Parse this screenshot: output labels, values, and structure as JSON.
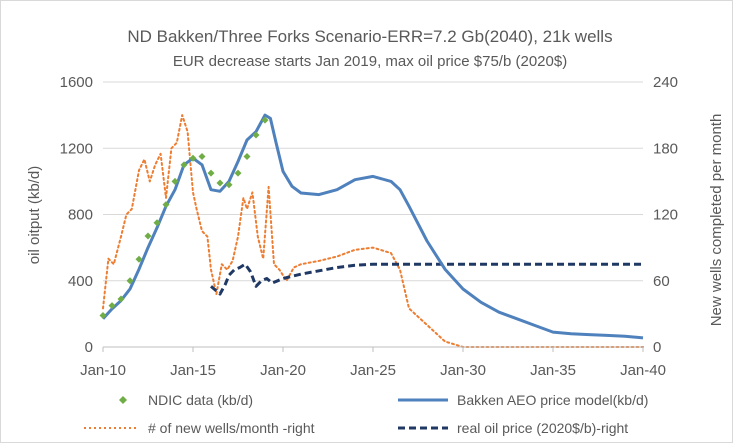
{
  "chart_data": {
    "type": "line",
    "title": "ND Bakken/Three Forks Scenario-ERR=7.2 Gb(2040), 21k wells",
    "subtitle": "EUR decrease starts Jan 2019, max oil price $75/b (2020$)",
    "xlabel": "",
    "ylabel": "oil oitput (kb/d)",
    "y2label": "New wells completed per month",
    "xlim": [
      2010,
      2040
    ],
    "ylim": [
      0,
      1600
    ],
    "y2lim": [
      0,
      240
    ],
    "xticks": [
      2010,
      2015,
      2020,
      2025,
      2030,
      2035,
      2040
    ],
    "xtick_labels": [
      "Jan-10",
      "Jan-15",
      "Jan-20",
      "Jan-25",
      "Jan-30",
      "Jan-35",
      "Jan-40"
    ],
    "yticks": [
      0,
      400,
      800,
      1200,
      1600
    ],
    "ytick_labels": [
      "0",
      "400",
      "800",
      "1200",
      "1600"
    ],
    "y2ticks": [
      0,
      60,
      120,
      180,
      240
    ],
    "y2tick_labels": [
      "0",
      "60",
      "120",
      "180",
      "240"
    ],
    "grid": "horizontal",
    "legend_position": "bottom",
    "series": [
      {
        "name": "NDIC  data (kb/d)",
        "axis": "left",
        "style": "markers",
        "color": "#70ad47",
        "x": [
          2010.0,
          2010.5,
          2011.0,
          2011.5,
          2012.0,
          2012.5,
          2013.0,
          2013.5,
          2014.0,
          2014.5,
          2015.0,
          2015.5,
          2016.0,
          2016.5,
          2017.0,
          2017.5,
          2018.0,
          2018.5,
          2019.0
        ],
        "y": [
          190,
          250,
          290,
          400,
          530,
          670,
          750,
          860,
          1000,
          1100,
          1140,
          1150,
          1050,
          990,
          980,
          1050,
          1150,
          1280,
          1370
        ]
      },
      {
        "name": "Bakken AEO price model(kb/d)",
        "axis": "left",
        "style": "solid",
        "color": "#4f81bd",
        "x": [
          2010.0,
          2010.5,
          2011.0,
          2011.5,
          2012.0,
          2012.5,
          2013.0,
          2013.5,
          2014.0,
          2014.5,
          2015.0,
          2015.5,
          2016.0,
          2016.5,
          2017.0,
          2017.5,
          2018.0,
          2018.5,
          2019.0,
          2019.3,
          2019.6,
          2020.0,
          2020.5,
          2021.0,
          2022.0,
          2023.0,
          2024.0,
          2025.0,
          2026.0,
          2026.5,
          2027.0,
          2028.0,
          2029.0,
          2030.0,
          2031.0,
          2032.0,
          2033.0,
          2034.0,
          2035.0,
          2036.0,
          2037.0,
          2038.0,
          2039.0,
          2040.0
        ],
        "y": [
          170,
          230,
          280,
          350,
          470,
          600,
          720,
          850,
          950,
          1100,
          1140,
          1100,
          950,
          940,
          1000,
          1120,
          1250,
          1300,
          1400,
          1380,
          1240,
          1060,
          970,
          930,
          920,
          950,
          1010,
          1030,
          1000,
          950,
          850,
          640,
          470,
          350,
          270,
          210,
          170,
          130,
          90,
          80,
          75,
          70,
          65,
          55
        ]
      },
      {
        "name": "# of new wells/month -right",
        "axis": "right",
        "style": "dotted",
        "color": "#ed7d31",
        "x": [
          2010.0,
          2010.3,
          2010.6,
          2011.0,
          2011.3,
          2011.6,
          2012.0,
          2012.3,
          2012.6,
          2012.9,
          2013.2,
          2013.5,
          2013.8,
          2014.1,
          2014.4,
          2014.7,
          2015.0,
          2015.2,
          2015.5,
          2015.8,
          2016.0,
          2016.3,
          2016.6,
          2016.9,
          2017.2,
          2017.5,
          2017.8,
          2018.0,
          2018.3,
          2018.6,
          2018.9,
          2019.2,
          2019.5,
          2019.8,
          2020.2,
          2020.6,
          2021.0,
          2022.0,
          2023.0,
          2024.0,
          2025.0,
          2026.0,
          2026.5,
          2027.0,
          2028.0,
          2029.0,
          2030.0,
          2035.0,
          2040.0
        ],
        "y": [
          35,
          80,
          75,
          100,
          120,
          125,
          160,
          170,
          150,
          165,
          175,
          135,
          180,
          185,
          210,
          195,
          140,
          125,
          105,
          100,
          70,
          48,
          75,
          70,
          78,
          100,
          135,
          125,
          140,
          100,
          80,
          145,
          75,
          70,
          60,
          72,
          75,
          78,
          82,
          88,
          90,
          85,
          70,
          35,
          20,
          5,
          0,
          0,
          0
        ]
      },
      {
        "name": "real oil price (2020$/b)-right",
        "axis": "right",
        "style": "dashed",
        "color": "#1f3864",
        "x": [
          2016.0,
          2016.5,
          2016.8,
          2017.0,
          2017.3,
          2017.6,
          2017.9,
          2018.2,
          2018.5,
          2018.8,
          2019.1,
          2019.4,
          2019.7,
          2020.0,
          2021.0,
          2022.0,
          2023.0,
          2024.0,
          2025.0,
          2026.0,
          2030.0,
          2035.0,
          2040.0
        ],
        "y": [
          55,
          48,
          57,
          65,
          70,
          72,
          75,
          68,
          55,
          60,
          62,
          58,
          60,
          62,
          66,
          69,
          72,
          74,
          75,
          75,
          75,
          75,
          75
        ]
      }
    ]
  },
  "legend": [
    {
      "label": "NDIC  data (kb/d)"
    },
    {
      "label": "Bakken AEO price model(kb/d)"
    },
    {
      "label": "# of new wells/month -right"
    },
    {
      "label": "real oil price (2020$/b)-right"
    }
  ]
}
